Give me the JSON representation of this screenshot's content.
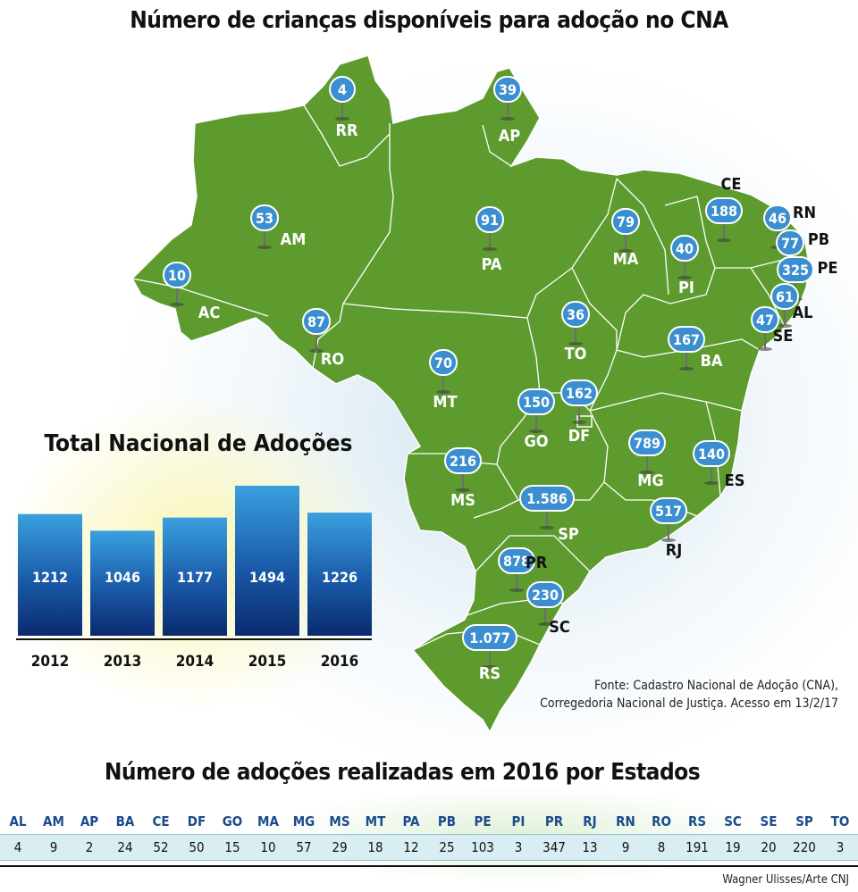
{
  "map": {
    "title": "Número de crianças disponíveis para adoção no CNA",
    "source_line1": "Fonte: Cadastro Nacional de Adoção (CNA),",
    "source_line2": "Corregedoria Nacional de Justiça. Acesso em 13/2/17",
    "states": [
      {
        "code": "RR",
        "value": "4"
      },
      {
        "code": "AP",
        "value": "39"
      },
      {
        "code": "AM",
        "value": "53"
      },
      {
        "code": "PA",
        "value": "91"
      },
      {
        "code": "MA",
        "value": "79"
      },
      {
        "code": "PI",
        "value": "40"
      },
      {
        "code": "CE",
        "value": "188"
      },
      {
        "code": "RN",
        "value": "46"
      },
      {
        "code": "PB",
        "value": "77"
      },
      {
        "code": "PE",
        "value": "325"
      },
      {
        "code": "AL",
        "value": "61"
      },
      {
        "code": "SE",
        "value": "47"
      },
      {
        "code": "AC",
        "value": "10"
      },
      {
        "code": "RO",
        "value": "87"
      },
      {
        "code": "MT",
        "value": "70"
      },
      {
        "code": "TO",
        "value": "36"
      },
      {
        "code": "BA",
        "value": "167"
      },
      {
        "code": "GO",
        "value": "150"
      },
      {
        "code": "DF",
        "value": "162"
      },
      {
        "code": "MG",
        "value": "789"
      },
      {
        "code": "ES",
        "value": "140"
      },
      {
        "code": "MS",
        "value": "216"
      },
      {
        "code": "SP",
        "value": "1.586"
      },
      {
        "code": "RJ",
        "value": "517"
      },
      {
        "code": "PR",
        "value": "878"
      },
      {
        "code": "SC",
        "value": "230"
      },
      {
        "code": "RS",
        "value": "1.077"
      }
    ]
  },
  "chart_data": [
    {
      "type": "bar",
      "title": "Total Nacional de Adoções",
      "categories": [
        "2012",
        "2013",
        "2014",
        "2015",
        "2016"
      ],
      "values": [
        1212,
        1046,
        1177,
        1494,
        1226
      ],
      "ylim": [
        0,
        1600
      ],
      "grid": false,
      "legend": "none"
    },
    {
      "type": "table",
      "title": "Número de adoções realizadas em 2016 por Estados",
      "columns": [
        "AL",
        "AM",
        "AP",
        "BA",
        "CE",
        "DF",
        "GO",
        "MA",
        "MG",
        "MS",
        "MT",
        "PA",
        "PB",
        "PE",
        "PI",
        "PR",
        "RJ",
        "RN",
        "RO",
        "RS",
        "SC",
        "SE",
        "SP",
        "TO"
      ],
      "values": [
        4,
        9,
        2,
        24,
        52,
        50,
        15,
        10,
        57,
        29,
        18,
        12,
        25,
        103,
        3,
        347,
        13,
        9,
        8,
        191,
        19,
        20,
        220,
        3
      ]
    }
  ],
  "colors": {
    "map_fill": "#5e9b2e",
    "map_stroke": "#ffffff",
    "pin": "#3b8fd0",
    "bar_top": "#3aa0de",
    "bar_bottom": "#0a2a6e",
    "table_header": "#1a4b8c",
    "table_row": "#d8eef3"
  },
  "credit": "Wagner Ulisses/Arte CNJ"
}
